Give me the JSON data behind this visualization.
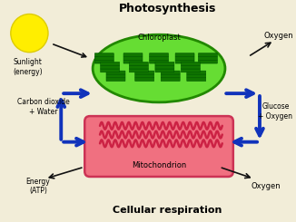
{
  "bg_color": "#f2edd8",
  "title_photo": "Photosynthesis",
  "title_cell": "Cellular respiration",
  "label_chloroplast": "Chloroplast",
  "label_mito": "Mitochondrion",
  "label_sunlight": "Sunlight\n(energy)",
  "label_oxygen_top": "Oxygen",
  "label_co2": "Carbon dioxide\n+ Water",
  "label_glucose": "Glucose\n+ Oxygen",
  "label_energy": "Energy\n(ATP)",
  "label_oxygen_bot": "Oxygen",
  "chloroplast_color": "#66dd33",
  "chloroplast_border": "#228800",
  "mito_color": "#f07080",
  "mito_border": "#cc3355",
  "sun_color": "#ffee00",
  "sun_border": "#ddcc00",
  "arrow_blue": "#1133bb",
  "arrow_black": "#111111",
  "thylakoid_color": "#117700",
  "crista_color": "#cc2244"
}
